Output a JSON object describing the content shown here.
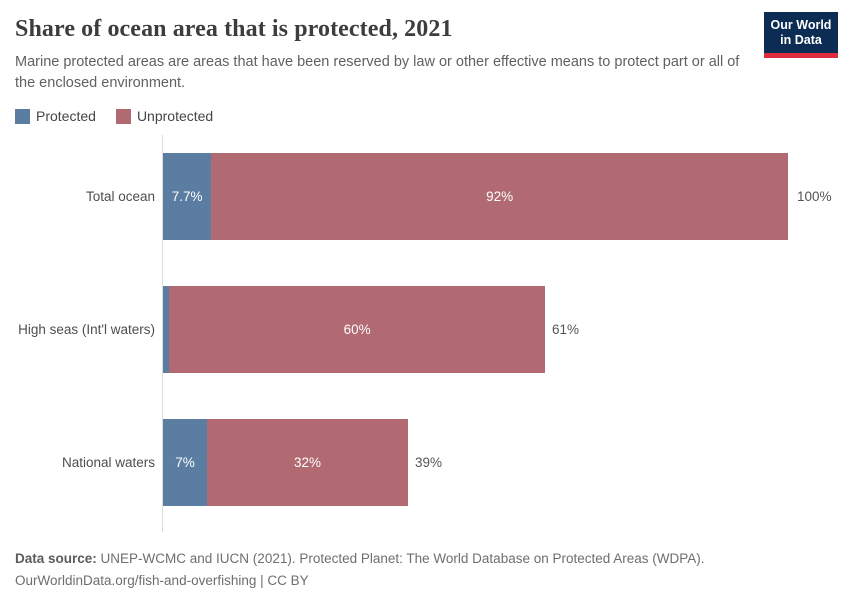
{
  "header": {
    "title": "Share of ocean area that is protected, 2021",
    "subtitle": "Marine protected areas are areas that have been reserved by law or other effective means to protect part or all of the enclosed environment.",
    "logo": {
      "line1": "Our World",
      "line2": "in Data"
    }
  },
  "legend": {
    "items": [
      {
        "label": "Protected",
        "color": "#5b7da1"
      },
      {
        "label": "Unprotected",
        "color": "#b16972"
      }
    ]
  },
  "chart_data": {
    "type": "bar",
    "orientation": "horizontal",
    "stacked": true,
    "categories": [
      "Total ocean",
      "High seas (Int'l waters)",
      "National waters"
    ],
    "series": [
      {
        "name": "Protected",
        "color": "#5b7da1",
        "values": [
          7.7,
          1,
          7
        ],
        "labels": [
          "7.7%",
          "",
          "7%"
        ]
      },
      {
        "name": "Unprotected",
        "color": "#b16972",
        "values": [
          92,
          60,
          32
        ],
        "labels": [
          "92%",
          "60%",
          "32%"
        ]
      }
    ],
    "totals": [
      100,
      61,
      39
    ],
    "total_labels": [
      "100%",
      "61%",
      "39%"
    ],
    "xlim": [
      0,
      100
    ],
    "unit": "%",
    "legend_position": "top-left",
    "grid": false
  },
  "footer": {
    "datasource_label": "Data source:",
    "datasource_text": "UNEP-WCMC and IUCN (2021). Protected Planet: The World Database on Protected Areas (WDPA).",
    "link_line": "OurWorldinData.org/fish-and-overfishing | CC BY"
  },
  "colors": {
    "protected": "#5b7da1",
    "unprotected": "#b16972",
    "logo_bg": "#0d2c54",
    "logo_accent": "#dc2c3e",
    "axis": "#dcdcdc"
  }
}
